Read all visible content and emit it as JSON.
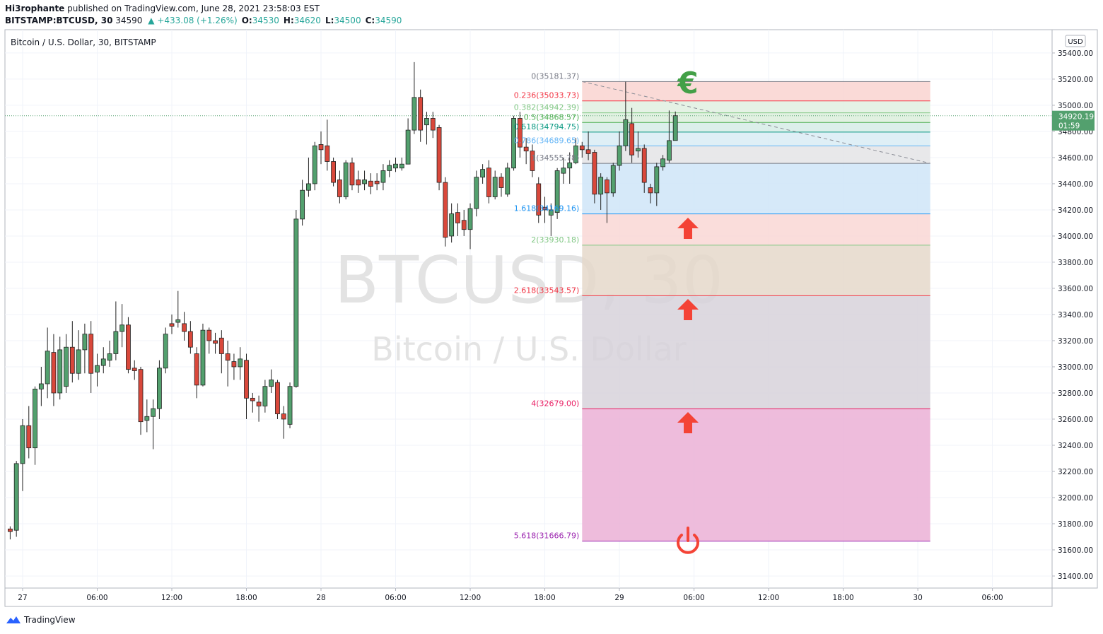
{
  "header": {
    "author": "Hi3rophante",
    "published": "published on TradingView.com, June 28, 2021 23:58:03 EST",
    "symbol": "BITSTAMP:BTCUSD, 30",
    "change": "▲ +433.08 (+1.26%)",
    "ohlc_labels": [
      "O:",
      "H:",
      "L:",
      "C:"
    ]
  },
  "footer": {
    "brand": "TradingView"
  },
  "chart_data": {
    "type": "candlestick",
    "title": "Bitcoin / U.S. Dollar, 30, BITSTAMP",
    "watermark": [
      "BTCUSD, 30",
      "Bitcoin / U.S. Dollar"
    ],
    "currency": "USD",
    "countdown": "01:59",
    "up_color": "#53a06e",
    "down_color": "#d9483b",
    "grid": true,
    "x": [
      -2,
      -1,
      0,
      1,
      2,
      3,
      4,
      5,
      6,
      7,
      8,
      9,
      10,
      11,
      12,
      13,
      14,
      15,
      16,
      17,
      18,
      19,
      20,
      21,
      22,
      23,
      24,
      25,
      26,
      27,
      28,
      29,
      30,
      31,
      32,
      33,
      34,
      35,
      36,
      37,
      38,
      39,
      40,
      41,
      42,
      43,
      44,
      45,
      46,
      47,
      48,
      49,
      50,
      51,
      52,
      53,
      54,
      55,
      56,
      57,
      58,
      59,
      60,
      61,
      62,
      63,
      64,
      65,
      66,
      67,
      68,
      69,
      70,
      71,
      72,
      73,
      74,
      75,
      76,
      77,
      78,
      79,
      80,
      81,
      82,
      83,
      84,
      85,
      86,
      87,
      88,
      89,
      90,
      91,
      92,
      93,
      94,
      95,
      96,
      97,
      98,
      99,
      100,
      101,
      102,
      103,
      104,
      105
    ],
    "open": [
      31760,
      31750,
      32260,
      32550,
      32380,
      32830,
      32870,
      33110,
      32800,
      32850,
      33150,
      32950,
      33130,
      33250,
      32960,
      33010,
      33050,
      33100,
      33270,
      33320,
      32990,
      32980,
      32590,
      32620,
      32680,
      32990,
      33330,
      33340,
      33330,
      33270,
      33100,
      32860,
      33280,
      33200,
      33220,
      33100,
      33040,
      33000,
      33050,
      32760,
      32730,
      32700,
      32850,
      32880,
      32640,
      32560,
      32850,
      34130,
      34350,
      34400,
      34700,
      34690,
      34570,
      34430,
      34300,
      34560,
      34430,
      34400,
      34420,
      34420,
      34410,
      34500,
      34520,
      34520,
      34550,
      34810,
      35060,
      34850,
      34900,
      34830,
      34410,
      34000,
      34180,
      34120,
      34050,
      34210,
      34450,
      34520,
      34300,
      34450,
      34320,
      34520,
      34900,
      34680,
      34650,
      34400,
      34220,
      34160,
      34180,
      34480,
      34520,
      34560,
      34690,
      34660,
      34640,
      34320,
      34430,
      34330,
      34540,
      34690,
      34860,
      34650,
      34670,
      34370,
      34330,
      34530,
      34580,
      34730.76
    ],
    "high": [
      31780,
      32280,
      32600,
      32700,
      32850,
      33000,
      33300,
      33250,
      33230,
      33250,
      33350,
      33280,
      33330,
      33350,
      33100,
      33150,
      33200,
      33500,
      33480,
      33380,
      33050,
      33000,
      32750,
      32750,
      33050,
      33300,
      33400,
      33580,
      33420,
      33350,
      33150,
      33330,
      33300,
      33260,
      33280,
      33200,
      33100,
      33150,
      33100,
      32800,
      32780,
      32900,
      32980,
      32900,
      32700,
      32880,
      34200,
      34430,
      34600,
      34720,
      34800,
      34890,
      34600,
      34500,
      34580,
      34600,
      34500,
      34500,
      34480,
      34480,
      34550,
      34580,
      34600,
      34600,
      34900,
      35330,
      35120,
      34950,
      34950,
      34850,
      34450,
      34250,
      34250,
      34200,
      34250,
      34500,
      34550,
      34580,
      34500,
      34480,
      34560,
      34920,
      34950,
      34750,
      34700,
      34450,
      34300,
      34250,
      34520,
      34600,
      34640,
      34750,
      34720,
      34800,
      34660,
      34480,
      34450,
      34560,
      34800,
      35180,
      34980,
      34800,
      34700,
      34400,
      34560,
      34620,
      34960,
      34952.39
    ],
    "low": [
      31680,
      31700,
      32050,
      32300,
      32250,
      32700,
      32760,
      32700,
      32750,
      32800,
      32880,
      32900,
      32950,
      32800,
      32850,
      32950,
      33000,
      33050,
      33150,
      32950,
      32900,
      32480,
      32500,
      32370,
      32600,
      32950,
      33250,
      33300,
      33200,
      33100,
      32760,
      32850,
      33100,
      33100,
      32950,
      32850,
      32900,
      32900,
      32600,
      32650,
      32580,
      32650,
      32800,
      32600,
      32450,
      32530,
      32840,
      34080,
      34300,
      34350,
      34550,
      34500,
      34380,
      34250,
      34280,
      34350,
      34330,
      34350,
      34320,
      34350,
      34350,
      34450,
      34490,
      34500,
      34550,
      34780,
      34720,
      34700,
      34750,
      34350,
      33920,
      33950,
      34000,
      34000,
      33900,
      34150,
      34400,
      34250,
      34280,
      34300,
      34300,
      34500,
      34600,
      34550,
      34450,
      34100,
      34100,
      34000,
      34130,
      34400,
      34400,
      34550,
      34600,
      34580,
      34250,
      34200,
      34100,
      34300,
      34500,
      34650,
      34560,
      34600,
      34330,
      34250,
      34230,
      34500,
      34560,
      34730.76
    ],
    "close": [
      31740,
      32260,
      32550,
      32380,
      32830,
      32870,
      33120,
      32800,
      33130,
      33150,
      32950,
      33130,
      33250,
      32950,
      33010,
      33060,
      33100,
      33270,
      33320,
      32980,
      32970,
      32580,
      32620,
      32680,
      32990,
      33250,
      33310,
      33360,
      33270,
      33150,
      32860,
      33280,
      33200,
      33180,
      33100,
      33050,
      33000,
      33060,
      32760,
      32740,
      32700,
      32850,
      32900,
      32640,
      32600,
      32850,
      34130,
      34350,
      34400,
      34690,
      34660,
      34570,
      34410,
      34300,
      34560,
      34390,
      34390,
      34430,
      34380,
      34400,
      34500,
      34540,
      34550,
      34550,
      34810,
      35060,
      34810,
      34900,
      34810,
      34410,
      33990,
      34170,
      34100,
      34050,
      34210,
      34450,
      34510,
      34300,
      34450,
      34370,
      34520,
      34900,
      34680,
      34650,
      34500,
      34160,
      34200,
      34200,
      34500,
      34520,
      34560,
      34690,
      34660,
      34630,
      34320,
      34450,
      34330,
      34540,
      34690,
      34890,
      34620,
      34670,
      34410,
      34330,
      34530,
      34590,
      34730,
      34920.19
    ],
    "xlim": [
      -2.84,
      165.6
    ],
    "xticks": [
      {
        "value": 0,
        "label": "27"
      },
      {
        "value": 12,
        "label": "06:00"
      },
      {
        "value": 24,
        "label": "12:00"
      },
      {
        "value": 36,
        "label": "18:00"
      },
      {
        "value": 48,
        "label": "28"
      },
      {
        "value": 60,
        "label": "06:00"
      },
      {
        "value": 72,
        "label": "12:00"
      },
      {
        "value": 84,
        "label": "18:00"
      },
      {
        "value": 96,
        "label": "29"
      },
      {
        "value": 108,
        "label": "06:00"
      },
      {
        "value": 120,
        "label": "12:00"
      },
      {
        "value": 132,
        "label": "18:00"
      },
      {
        "value": 144,
        "label": "30"
      },
      {
        "value": 156,
        "label": "06:00"
      }
    ],
    "ylim": [
      31308,
      35578
    ],
    "yticks": [
      {
        "value": 31400,
        "label": "31400.00"
      },
      {
        "value": 31600,
        "label": "31600.00"
      },
      {
        "value": 31800,
        "label": "31800.00"
      },
      {
        "value": 32000,
        "label": "32000.00"
      },
      {
        "value": 32200,
        "label": "32200.00"
      },
      {
        "value": 32400,
        "label": "32400.00"
      },
      {
        "value": 32600,
        "label": "32600.00"
      },
      {
        "value": 32800,
        "label": "32800.00"
      },
      {
        "value": 33000,
        "label": "33000.00"
      },
      {
        "value": 33200,
        "label": "33200.00"
      },
      {
        "value": 33400,
        "label": "33400.00"
      },
      {
        "value": 33600,
        "label": "33600.00"
      },
      {
        "value": 33800,
        "label": "33800.00"
      },
      {
        "value": 34000,
        "label": "34000.00"
      },
      {
        "value": 34200,
        "label": "34200.00"
      },
      {
        "value": 34400,
        "label": "34400.00"
      },
      {
        "value": 34600,
        "label": "34600.00"
      },
      {
        "value": 34800,
        "label": "34800.00"
      },
      {
        "value": 35000,
        "label": "35000.00"
      },
      {
        "value": 35200,
        "label": "35200.00"
      },
      {
        "value": 35400,
        "label": "35400.00"
      }
    ],
    "fibonacci": {
      "x_start": 90,
      "x_end": 146,
      "line_color": "#8a8d96",
      "levels": [
        {
          "value": 35181.37,
          "label": "0(35181.37)",
          "color": "#787b86"
        },
        {
          "value": 35033.73,
          "label": "0.236(35033.73)",
          "color": "#f23645",
          "fill": "#f9d3d0"
        },
        {
          "value": 34942.39,
          "label": "0.382(34942.39)",
          "color": "#81c784",
          "fill": "#e0f0e0"
        },
        {
          "value": 34868.57,
          "label": "0.5(34868.57)",
          "color": "#4caf50",
          "fill": "#dcefdc"
        },
        {
          "value": 34794.75,
          "label": "0.618(34794.75)",
          "color": "#089981",
          "fill": "#d6ece6"
        },
        {
          "value": 34689.65,
          "label": "0.786(34689.65)",
          "color": "#64b5f6",
          "fill": "#d9ecf4"
        },
        {
          "value": 34555.78,
          "label": "1(34555.78)",
          "color": "#787b86",
          "fill": "#e4e4e6"
        },
        {
          "value": 34169.16,
          "label": "1.618(34169.16)",
          "color": "#2196f3",
          "fill": "#cfe5f8"
        },
        {
          "value": 33930.18,
          "label": "2(33930.18)",
          "color": "#81c784",
          "fill": "#f9d7d5"
        },
        {
          "value": 33543.57,
          "label": "2.618(33543.57)",
          "color": "#f23645",
          "fill": "#e5d8ca"
        },
        {
          "value": 32679.0,
          "label": "4(32679.00)",
          "color": "#e91e63",
          "fill": "#d7d2da"
        },
        {
          "value": 31666.79,
          "label": "5.618(31666.79)",
          "color": "#9c27b0",
          "fill": "#ebb0d6"
        }
      ]
    },
    "annotations": [
      {
        "text": "€"
      }
    ]
  }
}
